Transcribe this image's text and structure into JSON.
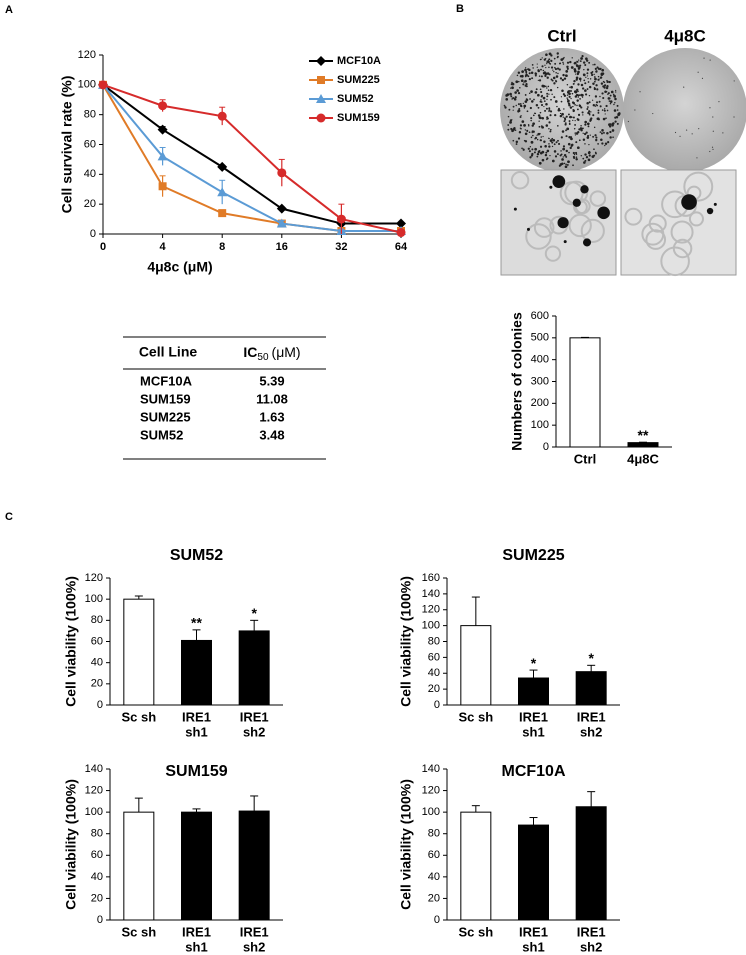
{
  "panel_labels": [
    "A",
    "B",
    "C"
  ],
  "plates": {
    "labels": [
      "Ctrl",
      "4μ8C"
    ]
  },
  "ic50_table": {
    "columns": [
      "Cell Line",
      {
        "text": "IC",
        "sub": "50",
        "unit": "(μM)"
      }
    ],
    "rows": [
      [
        "MCF10A",
        "5.39"
      ],
      [
        "SUM159",
        "11.08"
      ],
      [
        "SUM225",
        "1.63"
      ],
      [
        "SUM52",
        "3.48"
      ]
    ],
    "row_colors": [
      "#000000",
      "#d62b2b",
      "#e07b27",
      "#5b9bd5"
    ]
  },
  "chart_data": [
    {
      "type": "line",
      "x_label": "4μ8c (μM)",
      "y_label": "Cell survival rate (%)",
      "categories": [
        "0",
        "4",
        "8",
        "16",
        "32",
        "64"
      ],
      "ylim": [
        0,
        120
      ],
      "yticks": [
        0,
        20,
        40,
        60,
        80,
        100,
        120
      ],
      "legend": "upper right",
      "series": [
        {
          "name": "MCF10A",
          "color": "#000000",
          "marker": "diamond",
          "values": [
            100,
            70,
            45,
            17,
            7,
            7
          ],
          "errors": [
            0,
            2,
            1,
            1,
            1,
            1
          ]
        },
        {
          "name": "SUM225",
          "color": "#e07b27",
          "marker": "square",
          "values": [
            100,
            32,
            14,
            7,
            2,
            2
          ],
          "errors": [
            0,
            7,
            2,
            1,
            1,
            1
          ]
        },
        {
          "name": "SUM52",
          "color": "#5b9bd5",
          "marker": "triangle",
          "values": [
            100,
            52,
            28,
            7,
            2,
            2
          ],
          "errors": [
            0,
            6,
            8,
            2,
            1,
            1
          ]
        },
        {
          "name": "SUM159",
          "color": "#d62b2b",
          "marker": "circle",
          "values": [
            100,
            86,
            79,
            41,
            10,
            1
          ],
          "errors": [
            0,
            4,
            6,
            9,
            10,
            0
          ]
        }
      ]
    },
    {
      "type": "bar",
      "y_label": "Numbers of colonies",
      "categories": [
        [
          "Ctrl"
        ],
        [
          "4μ8C"
        ]
      ],
      "values": [
        500,
        20
      ],
      "errors": [
        2,
        2
      ],
      "annotations": [
        null,
        "**"
      ],
      "colors": [
        "#ffffff",
        "#000000"
      ],
      "ylim": [
        0,
        600
      ],
      "yticks": [
        0,
        100,
        200,
        300,
        400,
        500,
        600
      ]
    },
    {
      "type": "bar",
      "title": "SUM52",
      "y_label": "Cell viability (100%)",
      "categories": [
        [
          "Sc sh"
        ],
        [
          "IRE1",
          "sh1"
        ],
        [
          "IRE1",
          "sh2"
        ]
      ],
      "values": [
        100,
        61,
        70
      ],
      "errors": [
        3,
        10,
        10
      ],
      "annotations": [
        null,
        "**",
        "*"
      ],
      "colors": [
        "#ffffff",
        "#000000",
        "#000000"
      ],
      "ylim": [
        0,
        120
      ],
      "yticks": [
        0,
        20,
        40,
        60,
        80,
        100,
        120
      ]
    },
    {
      "type": "bar",
      "title": "SUM225",
      "y_label": "Cell viability (100%)",
      "categories": [
        [
          "Sc sh"
        ],
        [
          "IRE1",
          "sh1"
        ],
        [
          "IRE1",
          "sh2"
        ]
      ],
      "values": [
        100,
        34,
        42
      ],
      "errors": [
        36,
        10,
        8
      ],
      "annotations": [
        null,
        "*",
        "*"
      ],
      "colors": [
        "#ffffff",
        "#000000",
        "#000000"
      ],
      "ylim": [
        0,
        160
      ],
      "yticks": [
        0,
        20,
        40,
        60,
        80,
        100,
        120,
        140,
        160
      ]
    },
    {
      "type": "bar",
      "title": "SUM159",
      "y_label": "Cell viability (100%)",
      "categories": [
        [
          "Sc sh"
        ],
        [
          "IRE1",
          "sh1"
        ],
        [
          "IRE1",
          "sh2"
        ]
      ],
      "values": [
        100,
        100,
        101
      ],
      "errors": [
        13,
        3,
        14
      ],
      "colors": [
        "#ffffff",
        "#000000",
        "#000000"
      ],
      "ylim": [
        0,
        140
      ],
      "yticks": [
        0,
        20,
        40,
        60,
        80,
        100,
        120,
        140
      ]
    },
    {
      "type": "bar",
      "title": "MCF10A",
      "y_label": "Cell viability (100%)",
      "categories": [
        [
          "Sc sh"
        ],
        [
          "IRE1",
          "sh1"
        ],
        [
          "IRE1",
          "sh2"
        ]
      ],
      "values": [
        100,
        88,
        105
      ],
      "errors": [
        6,
        7,
        14
      ],
      "colors": [
        "#ffffff",
        "#000000",
        "#000000"
      ],
      "ylim": [
        0,
        140
      ],
      "yticks": [
        0,
        20,
        40,
        60,
        80,
        100,
        120,
        140
      ]
    }
  ]
}
